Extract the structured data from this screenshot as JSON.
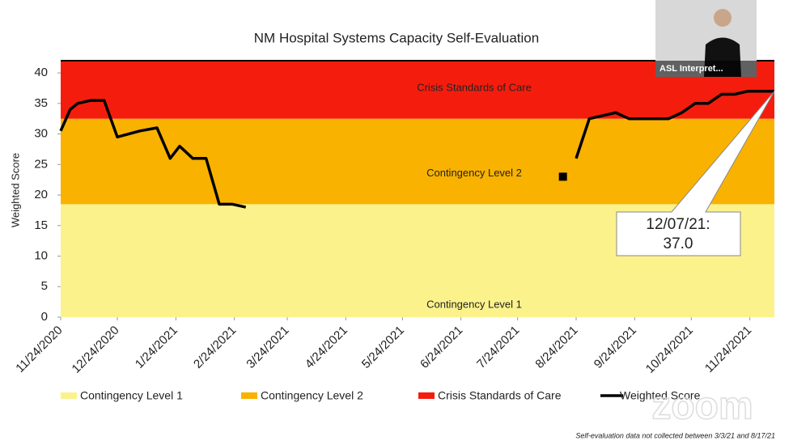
{
  "chart_data": {
    "type": "line",
    "title": "NM Hospital Systems Capacity Self-Evaluation",
    "y_label": "Weighted Score",
    "ylim": [
      0,
      42
    ],
    "yticks": [
      0,
      5,
      10,
      15,
      20,
      25,
      30,
      35,
      40
    ],
    "xlim": [
      "2020-11-24",
      "2021-12-07"
    ],
    "xticks": [
      {
        "value": "2020-11-24",
        "label": "11/24/2020"
      },
      {
        "value": "2020-12-24",
        "label": "12/24/2020"
      },
      {
        "value": "2021-01-24",
        "label": "1/24/2021"
      },
      {
        "value": "2021-02-24",
        "label": "2/24/2021"
      },
      {
        "value": "2021-03-24",
        "label": "3/24/2021"
      },
      {
        "value": "2021-04-24",
        "label": "4/24/2021"
      },
      {
        "value": "2021-05-24",
        "label": "5/24/2021"
      },
      {
        "value": "2021-06-24",
        "label": "6/24/2021"
      },
      {
        "value": "2021-07-24",
        "label": "7/24/2021"
      },
      {
        "value": "2021-08-24",
        "label": "8/24/2021"
      },
      {
        "value": "2021-09-24",
        "label": "9/24/2021"
      },
      {
        "value": "2021-10-24",
        "label": "10/24/2021"
      },
      {
        "value": "2021-11-24",
        "label": "11/24/2021"
      }
    ],
    "bands": [
      {
        "name": "Contingency Level 1",
        "color": "#fbf28c",
        "from": 0,
        "to": 18.5
      },
      {
        "name": "Contingency Level 2",
        "color": "#f9b200",
        "from": 18.5,
        "to": 32.5
      },
      {
        "name": "Crisis Standards of Care",
        "color": "#f41d0d",
        "from": 32.5,
        "to": 42
      }
    ],
    "x": [
      "2020-11-24",
      "2020-11-29",
      "2020-12-03",
      "2020-12-10",
      "2020-12-17",
      "2020-12-24",
      "2021-01-05",
      "2021-01-14",
      "2021-01-21",
      "2021-01-26",
      "2021-02-02",
      "2021-02-09",
      "2021-02-16",
      "2021-02-23",
      "2021-03-02",
      "2021-03-03",
      "2021-08-17",
      "2021-08-20",
      "2021-08-24",
      "2021-08-31",
      "2021-09-07",
      "2021-09-14",
      "2021-09-21",
      "2021-09-28",
      "2021-10-05",
      "2021-10-12",
      "2021-10-19",
      "2021-10-26",
      "2021-11-02",
      "2021-11-09",
      "2021-11-16",
      "2021-11-23",
      "2021-11-30",
      "2021-12-07"
    ],
    "series": [
      {
        "name": "Weighted Score",
        "color": "#000000",
        "values": [
          30.5,
          34,
          35,
          35.5,
          35.5,
          29.5,
          30.5,
          31,
          26,
          28,
          26,
          26,
          18.5,
          18.5,
          18,
          null,
          23,
          null,
          26,
          32.5,
          33,
          33.5,
          32.5,
          32.5,
          32.5,
          32.5,
          33.5,
          35,
          35,
          36.5,
          36.5,
          37,
          37,
          37
        ]
      }
    ],
    "annotation": [
      "12/07/21:",
      "37.0"
    ],
    "footnote": "Self-evaluation data not collected between 3/3/21 and 8/17/21"
  },
  "overlay": {
    "video_label": "ASL Interpret...",
    "watermark": "zoom"
  }
}
